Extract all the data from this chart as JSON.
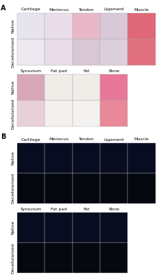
{
  "panel_A_label": "A",
  "panel_B_label": "B",
  "row1_cols": [
    "Cartilage",
    "Meniscus",
    "Tendon",
    "Ligament",
    "Muscle"
  ],
  "row1_row_labels": [
    "Native",
    "Decellularized"
  ],
  "row2_cols": [
    "Synovium",
    "Fat pad",
    "Fat",
    "Bone"
  ],
  "row2_row_labels": [
    "Native",
    "Decellularized"
  ],
  "section_A_row1_colors": [
    [
      "#e8e4ef",
      "#e8dde8",
      "#e8b8c8",
      "#d8c8d8",
      "#e06878"
    ],
    [
      "#ede8f0",
      "#e8dce8",
      "#d8c8d4",
      "#ddd0dc",
      "#e07080"
    ]
  ],
  "section_A_row2_colors": [
    [
      "#d8a8b8",
      "#f0ece8",
      "#f0ece8",
      "#e87898"
    ],
    [
      "#e8d0d8",
      "#f4f0ee",
      "#f4f2f0",
      "#e88898"
    ]
  ],
  "section_B_row1_colors": [
    [
      "#080c20",
      "#080c20",
      "#080c20",
      "#080c20",
      "#080c20"
    ],
    [
      "#060810",
      "#060810",
      "#060810",
      "#060810",
      "#060810"
    ]
  ],
  "section_B_row2_colors": [
    [
      "#080c20",
      "#080c20",
      "#080c20",
      "#080c20"
    ],
    [
      "#060810",
      "#060810",
      "#060810",
      "#060810"
    ]
  ],
  "bg_color": "#ffffff",
  "text_color": "#000000",
  "border_color": "#aaaaaa",
  "row_label_fontsize": 4.5,
  "col_label_fontsize": 4.5,
  "panel_label_fontsize": 7
}
